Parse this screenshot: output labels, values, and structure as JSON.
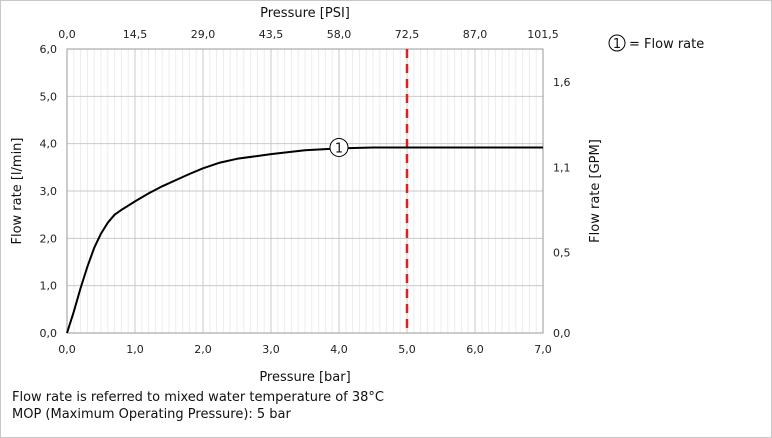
{
  "chart_data": {
    "type": "line",
    "title": "",
    "xlabel": "Pressure [bar]",
    "ylabel": "Flow rate [l/min]",
    "x2label": "Pressure [PSI]",
    "y2label": "Flow rate [GPM]",
    "xlim": [
      0,
      7
    ],
    "ylim": [
      0,
      6
    ],
    "x_ticks": [
      0,
      1,
      2,
      3,
      4,
      5,
      6,
      7
    ],
    "x_tick_labels": [
      "0,0",
      "1,0",
      "2,0",
      "3,0",
      "4,0",
      "5,0",
      "6,0",
      "7,0"
    ],
    "y_ticks": [
      0,
      1,
      2,
      3,
      4,
      5,
      6
    ],
    "y_tick_labels": [
      "0,0",
      "1,0",
      "2,0",
      "3,0",
      "4,0",
      "5,0",
      "6,0"
    ],
    "x2_ticks": [
      0,
      1,
      2,
      3,
      4,
      5,
      6,
      7
    ],
    "x2_tick_labels": [
      "0,0",
      "14,5",
      "29,0",
      "43,5",
      "58,0",
      "72,5",
      "87,0",
      "101,5"
    ],
    "y2_ticks": [
      0,
      1.7,
      3.5,
      5.3
    ],
    "y2_tick_labels": [
      "0,0",
      "0,5",
      "1,1",
      "1,6"
    ],
    "grid": true,
    "legend": "top-right",
    "series": [
      {
        "name": "Flow rate",
        "marker_label": "1",
        "marker_at": [
          4.0,
          3.92
        ],
        "color": "#000000",
        "x": [
          0,
          0.1,
          0.2,
          0.3,
          0.4,
          0.5,
          0.6,
          0.7,
          0.8,
          1.0,
          1.2,
          1.4,
          1.6,
          1.8,
          2.0,
          2.25,
          2.5,
          3.0,
          3.5,
          4.0,
          4.5,
          5.0,
          6.0,
          7.0
        ],
        "y": [
          0,
          0.45,
          0.95,
          1.4,
          1.8,
          2.1,
          2.33,
          2.5,
          2.6,
          2.78,
          2.95,
          3.1,
          3.23,
          3.36,
          3.48,
          3.6,
          3.68,
          3.78,
          3.86,
          3.9,
          3.92,
          3.92,
          3.92,
          3.92
        ]
      }
    ],
    "reference_line": {
      "x": 5.0,
      "label": "MOP",
      "color": "#e02020"
    },
    "legend_entry": {
      "marker": "1",
      "label": "= Flow rate"
    }
  },
  "notes": [
    "Flow rate is referred to mixed water temperature of 38°C",
    "MOP (Maximum Operating Pressure): 5 bar"
  ]
}
